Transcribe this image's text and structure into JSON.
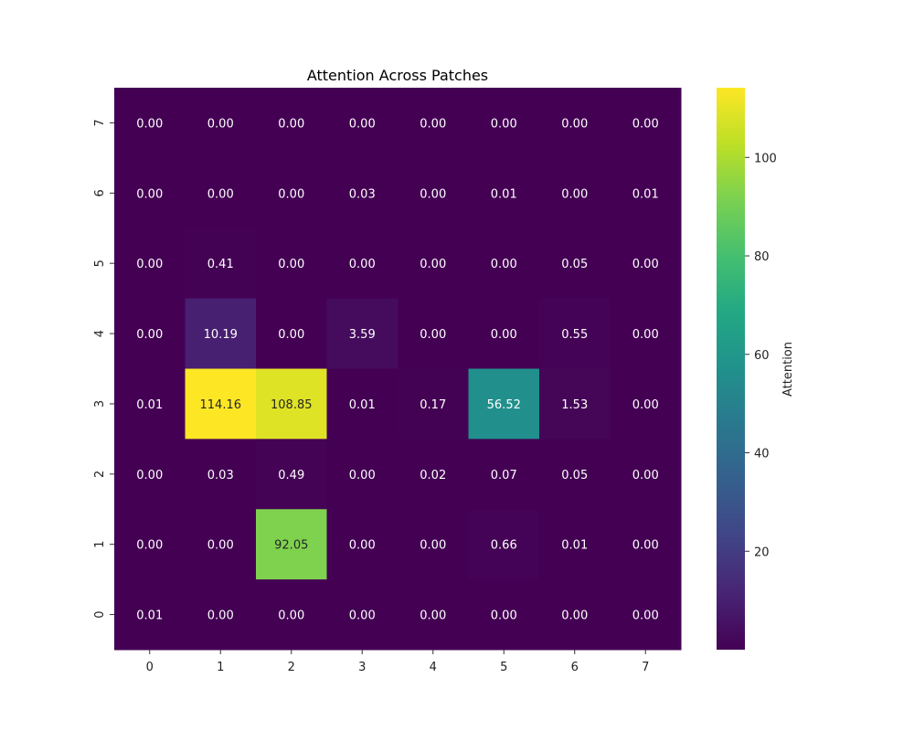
{
  "chart_data": {
    "type": "heatmap",
    "title": "Attention Across Patches",
    "xlabel": "",
    "ylabel": "",
    "x_categories": [
      "0",
      "1",
      "2",
      "3",
      "4",
      "5",
      "6",
      "7"
    ],
    "y_categories": [
      "7",
      "6",
      "5",
      "4",
      "3",
      "2",
      "1",
      "0"
    ],
    "values": [
      [
        0.0,
        0.0,
        0.0,
        0.0,
        0.0,
        0.0,
        0.0,
        0.0
      ],
      [
        0.0,
        0.0,
        0.0,
        0.03,
        0.0,
        0.01,
        0.0,
        0.01
      ],
      [
        0.0,
        0.41,
        0.0,
        0.0,
        0.0,
        0.0,
        0.05,
        0.0
      ],
      [
        0.0,
        10.19,
        0.0,
        3.59,
        0.0,
        0.0,
        0.55,
        0.0
      ],
      [
        0.01,
        114.16,
        108.85,
        0.01,
        0.17,
        56.52,
        1.53,
        0.0
      ],
      [
        0.0,
        0.03,
        0.49,
        0.0,
        0.02,
        0.07,
        0.05,
        0.0
      ],
      [
        0.0,
        0.0,
        92.05,
        0.0,
        0.0,
        0.66,
        0.01,
        0.0
      ],
      [
        0.01,
        0.0,
        0.0,
        0.0,
        0.0,
        0.0,
        0.0,
        0.0
      ]
    ],
    "labels": [
      [
        "0.00",
        "0.00",
        "0.00",
        "0.00",
        "0.00",
        "0.00",
        "0.00",
        "0.00"
      ],
      [
        "0.00",
        "0.00",
        "0.00",
        "0.03",
        "0.00",
        "0.01",
        "0.00",
        "0.01"
      ],
      [
        "0.00",
        "0.41",
        "0.00",
        "0.00",
        "0.00",
        "0.00",
        "0.05",
        "0.00"
      ],
      [
        "0.00",
        "10.19",
        "0.00",
        "3.59",
        "0.00",
        "0.00",
        "0.55",
        "0.00"
      ],
      [
        "0.01",
        "114.16",
        "108.85",
        "0.01",
        "0.17",
        "56.52",
        "1.53",
        "0.00"
      ],
      [
        "0.00",
        "0.03",
        "0.49",
        "0.00",
        "0.02",
        "0.07",
        "0.05",
        "0.00"
      ],
      [
        "0.00",
        "0.00",
        "92.05",
        "0.00",
        "0.00",
        "0.66",
        "0.01",
        "0.00"
      ],
      [
        "0.01",
        "0.00",
        "0.00",
        "0.00",
        "0.00",
        "0.00",
        "0.00",
        "0.00"
      ]
    ],
    "colormap": "viridis",
    "vmin": 0,
    "vmax": 114.16,
    "colorbar": {
      "label": "Attention",
      "ticks": [
        20,
        40,
        60,
        80,
        100
      ],
      "tick_labels": [
        "20",
        "40",
        "60",
        "80",
        "100"
      ]
    },
    "grid": false
  }
}
